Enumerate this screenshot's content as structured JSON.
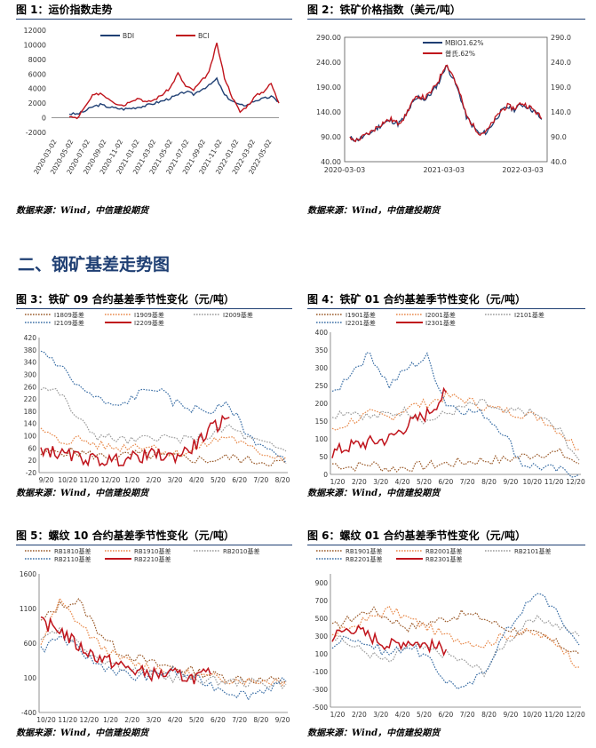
{
  "section_title": "二、钢矿基差走势图",
  "source_note": "数据来源：Wind，中信建投期货",
  "colors": {
    "red": "#c0141c",
    "navy": "#1f3f73",
    "blue": "#3a6ea5",
    "orange": "#e8894a",
    "brown": "#9a5a2a",
    "gray": "#9a9a9a",
    "black": "#000000"
  },
  "charts": [
    {
      "title": "图 1：运价指数走势",
      "chart_data": {
        "type": "line",
        "ylim": [
          -2000,
          12000
        ],
        "yticks": [
          "12000",
          "10000",
          "8000",
          "6000",
          "4000",
          "2000",
          "0",
          "-2000"
        ],
        "ytick_values": [
          12000,
          10000,
          8000,
          6000,
          4000,
          2000,
          0,
          -2000
        ],
        "xticks": [
          "2020-03-02",
          "2020-05-02",
          "2020-07-02",
          "2020-09-02",
          "2020-11-02",
          "2021-01-02",
          "2021-03-02",
          "2021-05-02",
          "2021-07-02",
          "2021-09-02",
          "2021-11-02",
          "2022-01-02",
          "2022-03-02",
          "2022-05-02"
        ],
        "x": [
          0,
          1,
          2,
          3,
          4,
          5,
          6,
          7,
          8,
          9,
          10,
          11,
          12,
          13,
          14,
          15,
          16,
          17,
          18,
          19,
          20,
          21,
          22,
          23,
          24,
          25,
          26,
          27
        ],
        "series": [
          {
            "name": "BDI",
            "color": "navy",
            "values": [
              550,
              500,
              900,
              1500,
              1800,
              1500,
              1300,
              1200,
              1300,
              1500,
              1700,
              2000,
              2300,
              2700,
              3100,
              3600,
              3200,
              3900,
              4400,
              5300,
              3100,
              2300,
              1700,
              1800,
              2400,
              2600,
              2900,
              2200
            ]
          },
          {
            "name": "BCI",
            "color": "red",
            "values": [
              200,
              -100,
              1400,
              3000,
              3400,
              2700,
              2000,
              1700,
              2400,
              2700,
              2100,
              2500,
              3200,
              4100,
              6100,
              4300,
              3800,
              5000,
              6200,
              10200,
              5500,
              2800,
              800,
              1700,
              3000,
              3600,
              4700,
              2000
            ]
          }
        ],
        "legend": "top-center"
      }
    },
    {
      "title": "图 2：铁矿价格指数（美元/吨）",
      "chart_data": {
        "type": "line",
        "ylim_left": [
          40,
          290
        ],
        "ylim_right": [
          40,
          290
        ],
        "yticks_left": [
          "290.00",
          "240.00",
          "190.00",
          "140.00",
          "90.00",
          "40.00"
        ],
        "yticks_right": [
          "290.0",
          "240.0",
          "190.0",
          "140.0",
          "90.0",
          "40.0"
        ],
        "ytick_values": [
          290,
          240,
          190,
          140,
          90,
          40
        ],
        "xticks": [
          "2020-03-03",
          "2021-03-03",
          "2022-03-03"
        ],
        "xtick_pos": [
          0,
          0.49,
          0.88
        ],
        "x": [
          0,
          1,
          2,
          3,
          4,
          5,
          6,
          7,
          8,
          9,
          10,
          11,
          12,
          13,
          14,
          15,
          16,
          17,
          18,
          19,
          20,
          21,
          22,
          23,
          24,
          25,
          26,
          27,
          28
        ],
        "series": [
          {
            "name": "MBIO1.62%",
            "color": "navy",
            "values": [
              87,
              84,
              90,
              98,
              108,
              118,
              123,
              116,
              128,
              155,
              170,
              165,
              180,
              200,
              233,
              210,
              175,
              130,
              110,
              95,
              100,
              120,
              140,
              150,
              145,
              155,
              150,
              140,
              125
            ]
          },
          {
            "name": "普氏.62%",
            "color": "red",
            "values": [
              86,
              83,
              91,
              99,
              110,
              120,
              125,
              117,
              130,
              158,
              172,
              168,
              183,
              205,
              237,
              214,
              178,
              132,
              112,
              96,
              102,
              122,
              142,
              152,
              147,
              158,
              152,
              142,
              127
            ]
          }
        ],
        "legend": "top-left"
      }
    },
    {
      "title": "图 3：铁矿 09 合约基差季节性变化（元/吨）",
      "chart_data": {
        "type": "line",
        "ylim": [
          -20,
          420
        ],
        "yticks": [
          "420",
          "380",
          "340",
          "300",
          "260",
          "220",
          "180",
          "140",
          "100",
          "60",
          "20",
          "-20"
        ],
        "ytick_values": [
          420,
          380,
          340,
          300,
          260,
          220,
          180,
          140,
          100,
          60,
          20,
          -20
        ],
        "xticks": [
          "9/20",
          "10/20",
          "11/20",
          "12/20",
          "1/20",
          "2/20",
          "3/20",
          "4/20",
          "5/20",
          "6/20",
          "7/20",
          "8/20"
        ],
        "series": [
          {
            "name": "I1809基差",
            "color": "brown",
            "dash": "dot",
            "values": [
              40,
              50,
              45,
              35,
              30,
              40,
              35,
              30,
              25,
              20,
              30,
              20,
              15,
              10
            ]
          },
          {
            "name": "I1909基差",
            "color": "orange",
            "dash": "dot",
            "values": [
              120,
              80,
              90,
              70,
              60,
              70,
              65,
              40,
              50,
              80,
              100,
              60,
              40,
              30
            ]
          },
          {
            "name": "I2009基差",
            "color": "gray",
            "dash": "dot",
            "values": [
              260,
              240,
              150,
              100,
              90,
              80,
              100,
              90,
              85,
              100,
              130,
              90,
              70,
              50
            ]
          },
          {
            "name": "I2109基差",
            "color": "blue",
            "dash": "dot",
            "values": [
              380,
              330,
              260,
              220,
              190,
              230,
              260,
              210,
              190,
              180,
              200,
              100,
              60,
              10
            ]
          },
          {
            "name": "I2209基差",
            "color": "red",
            "dash": "solid",
            "values": [
              60,
              40,
              30,
              20,
              20,
              30,
              40,
              30,
              60,
              120,
              160,
              null,
              null,
              null
            ]
          }
        ],
        "legend": "top"
      }
    },
    {
      "title": "图 4：铁矿 01 合约基差季节性变化（元/吨）",
      "chart_data": {
        "type": "line",
        "ylim": [
          0,
          400
        ],
        "yticks": [
          "400",
          "350",
          "300",
          "250",
          "200",
          "150",
          "100",
          "50",
          "0"
        ],
        "ytick_values": [
          400,
          350,
          300,
          250,
          200,
          150,
          100,
          50,
          0
        ],
        "xticks": [
          "1/20",
          "2/20",
          "3/20",
          "4/20",
          "5/20",
          "6/20",
          "7/20",
          "8/20",
          "9/20",
          "10/20",
          "11/20",
          "12/20"
        ],
        "series": [
          {
            "name": "I1901基差",
            "color": "brown",
            "dash": "dot",
            "values": [
              30,
              20,
              30,
              15,
              20,
              25,
              30,
              35,
              40,
              40,
              50,
              60,
              60,
              30
            ]
          },
          {
            "name": "I2001基差",
            "color": "orange",
            "dash": "dot",
            "values": [
              120,
              150,
              170,
              160,
              190,
              200,
              220,
              210,
              190,
              180,
              170,
              160,
              120,
              70
            ]
          },
          {
            "name": "I2101基差",
            "color": "gray",
            "dash": "dot",
            "values": [
              170,
              180,
              160,
              170,
              180,
              150,
              170,
              190,
              200,
              170,
              180,
              160,
              120,
              40
            ]
          },
          {
            "name": "I2201基差",
            "color": "blue",
            "dash": "dot",
            "values": [
              220,
              290,
              340,
              250,
              300,
              330,
              200,
              180,
              170,
              120,
              30,
              20,
              10,
              0
            ]
          },
          {
            "name": "I2301基差",
            "color": "red",
            "dash": "solid",
            "values": [
              60,
              80,
              90,
              100,
              140,
              170,
              230,
              null,
              null,
              null,
              null,
              null,
              null,
              null
            ]
          }
        ],
        "legend": "top"
      }
    },
    {
      "title": "图 5：螺纹 10 合约基差季节性变化（元/吨）",
      "chart_data": {
        "type": "line",
        "ylim": [
          -400,
          1600
        ],
        "yticks": [
          "1600",
          "1100",
          "600",
          "100",
          "-400"
        ],
        "ytick_values": [
          1600,
          1100,
          600,
          100,
          -400
        ],
        "xticks": [
          "10/20",
          "11/20",
          "12/20",
          "1/20",
          "2/20",
          "3/20",
          "4/20",
          "5/20",
          "6/20",
          "7/20",
          "8/20",
          "9/20"
        ],
        "series": [
          {
            "name": "RB1810基差",
            "color": "brown",
            "dash": "dot",
            "values": [
              900,
              1150,
              1200,
              800,
              500,
              400,
              300,
              250,
              200,
              150,
              100,
              80,
              60,
              50
            ]
          },
          {
            "name": "RB1910基差",
            "color": "orange",
            "dash": "dot",
            "values": [
              600,
              1200,
              900,
              600,
              400,
              300,
              250,
              200,
              150,
              100,
              80,
              60,
              60,
              50
            ]
          },
          {
            "name": "RB2010基差",
            "color": "gray",
            "dash": "dot",
            "values": [
              700,
              800,
              600,
              400,
              300,
              200,
              150,
              100,
              80,
              60,
              40,
              30,
              20,
              10
            ]
          },
          {
            "name": "RB2110基差",
            "color": "blue",
            "dash": "dot",
            "values": [
              500,
              700,
              500,
              300,
              200,
              100,
              150,
              200,
              100,
              0,
              -100,
              -150,
              -50,
              50
            ]
          },
          {
            "name": "RB2210基差",
            "color": "red",
            "dash": "solid",
            "values": [
              900,
              800,
              550,
              400,
              300,
              200,
              150,
              150,
              100,
              150,
              null,
              null,
              null,
              null
            ]
          }
        ],
        "legend": "top"
      }
    },
    {
      "title": "图 6：螺纹 01 合约基差季节性变化（元/吨）",
      "chart_data": {
        "type": "line",
        "ylim": [
          -500,
          1000
        ],
        "yticks": [
          "900",
          "700",
          "500",
          "300",
          "100",
          "-100",
          "-300",
          "-500"
        ],
        "ytick_values": [
          900,
          700,
          500,
          300,
          100,
          -100,
          -300,
          -500
        ],
        "xticks": [
          "1/20",
          "2/20",
          "3/20",
          "4/20",
          "5/20",
          "6/20",
          "7/20",
          "8/20",
          "9/20",
          "10/20",
          "11/20",
          "12/20"
        ],
        "series": [
          {
            "name": "RB1901基差",
            "color": "brown",
            "dash": "dot",
            "values": [
              400,
              500,
              600,
              500,
              400,
              450,
              500,
              550,
              500,
              400,
              350,
              300,
              200,
              100
            ]
          },
          {
            "name": "RB2001基差",
            "color": "orange",
            "dash": "dot",
            "values": [
              300,
              400,
              500,
              600,
              500,
              400,
              300,
              250,
              200,
              300,
              350,
              300,
              200,
              -50
            ]
          },
          {
            "name": "RB2101基差",
            "color": "gray",
            "dash": "dot",
            "values": [
              300,
              200,
              100,
              0,
              200,
              150,
              100,
              0,
              -100,
              200,
              400,
              500,
              400,
              300
            ]
          },
          {
            "name": "RB2201基差",
            "color": "blue",
            "dash": "dot",
            "values": [
              200,
              300,
              200,
              100,
              200,
              50,
              -200,
              -300,
              -100,
              300,
              600,
              800,
              500,
              200
            ]
          },
          {
            "name": "RB2301基差",
            "color": "red",
            "dash": "solid",
            "values": [
              300,
              400,
              300,
              200,
              250,
              200,
              150,
              null,
              null,
              null,
              null,
              null,
              null,
              null
            ]
          }
        ],
        "legend": "top"
      }
    }
  ]
}
